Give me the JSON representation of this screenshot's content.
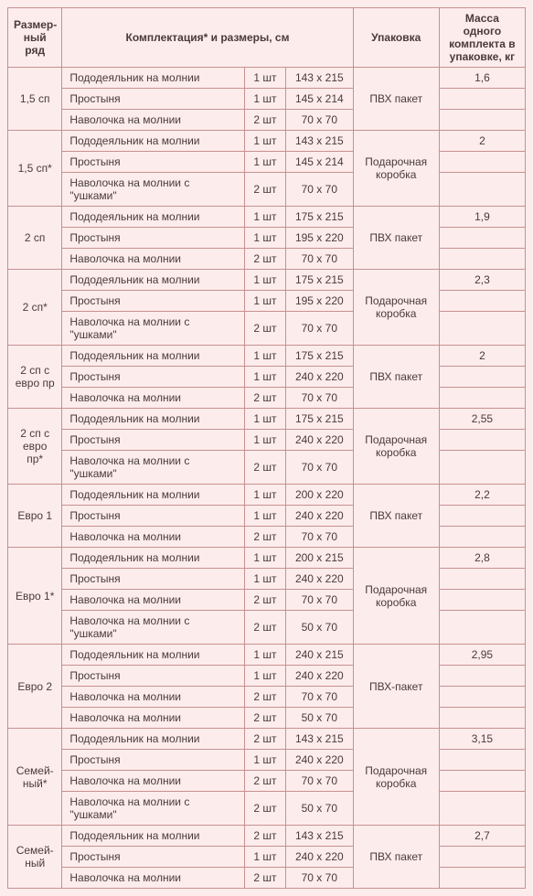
{
  "headers": {
    "size_range": "Размер-ный ряд",
    "config": "Комплектация* и размеры, см",
    "packaging": "Упаковка",
    "mass": "Масса одного комплекта в упаковке, кг"
  },
  "groups": [
    {
      "size": "1,5 сп",
      "packaging": "ПВХ пакет",
      "mass": "1,6",
      "rows": [
        {
          "item": "Пододеяльник на молнии",
          "qty": "1 шт",
          "dim": "143 x 215"
        },
        {
          "item": "Простыня",
          "qty": "1 шт",
          "dim": "145 x 214"
        },
        {
          "item": "Наволочка на молнии",
          "qty": "2 шт",
          "dim": "70 x 70"
        }
      ]
    },
    {
      "size": "1,5 сп*",
      "packaging": "Подарочная коробка",
      "mass": "2",
      "rows": [
        {
          "item": "Пододеяльник на молнии",
          "qty": "1 шт",
          "dim": "143 x 215"
        },
        {
          "item": "Простыня",
          "qty": "1 шт",
          "dim": "145 x 214"
        },
        {
          "item": "Наволочка на молнии с \"ушками\"",
          "qty": "2 шт",
          "dim": "70 x 70"
        }
      ]
    },
    {
      "size": "2 сп",
      "packaging": "ПВХ пакет",
      "mass": "1,9",
      "rows": [
        {
          "item": "Пододеяльник на молнии",
          "qty": "1 шт",
          "dim": "175 x 215"
        },
        {
          "item": "Простыня",
          "qty": "1 шт",
          "dim": "195 x 220"
        },
        {
          "item": "Наволочка на молнии",
          "qty": "2 шт",
          "dim": "70 x 70"
        }
      ]
    },
    {
      "size": "2 сп*",
      "packaging": "Подарочная коробка",
      "mass": "2,3",
      "rows": [
        {
          "item": "Пододеяльник на молнии",
          "qty": "1 шт",
          "dim": "175 x 215"
        },
        {
          "item": "Простыня",
          "qty": "1 шт",
          "dim": "195 x 220"
        },
        {
          "item": "Наволочка на молнии с \"ушками\"",
          "qty": "2 шт",
          "dim": "70 x 70"
        }
      ]
    },
    {
      "size": "2 сп с евро пр",
      "packaging": "ПВХ пакет",
      "mass": "2",
      "rows": [
        {
          "item": "Пододеяльник на молнии",
          "qty": "1 шт",
          "dim": "175 x 215"
        },
        {
          "item": "Простыня",
          "qty": "1 шт",
          "dim": "240 x 220"
        },
        {
          "item": "Наволочка на молнии",
          "qty": "2 шт",
          "dim": "70 x 70"
        }
      ]
    },
    {
      "size": "2 сп с евро пр*",
      "packaging": "Подарочная коробка",
      "mass": "2,55",
      "rows": [
        {
          "item": "Пододеяльник на молнии",
          "qty": "1 шт",
          "dim": "175 x 215"
        },
        {
          "item": "Простыня",
          "qty": "1 шт",
          "dim": "240 x 220"
        },
        {
          "item": "Наволочка на молнии с \"ушками\"",
          "qty": "2 шт",
          "dim": "70 x 70"
        }
      ]
    },
    {
      "size": "Евро 1",
      "packaging": "ПВХ пакет",
      "mass": "2,2",
      "rows": [
        {
          "item": "Пододеяльник на молнии",
          "qty": "1 шт",
          "dim": "200 x 220"
        },
        {
          "item": "Простыня",
          "qty": "1 шт",
          "dim": "240 x 220"
        },
        {
          "item": "Наволочка на молнии",
          "qty": "2 шт",
          "dim": "70 x 70"
        }
      ]
    },
    {
      "size": "Евро 1*",
      "packaging": "Подарочная коробка",
      "mass": "2,8",
      "rows": [
        {
          "item": "Пододеяльник на молнии",
          "qty": "1 шт",
          "dim": "200 x 215"
        },
        {
          "item": "Простыня",
          "qty": "1 шт",
          "dim": "240 x 220"
        },
        {
          "item": "Наволочка на молнии",
          "qty": "2 шт",
          "dim": "70 x 70"
        },
        {
          "item": "Наволочка на молнии с \"ушками\"",
          "qty": "2 шт",
          "dim": "50 x 70"
        }
      ]
    },
    {
      "size": "Евро 2",
      "packaging": "ПВХ-пакет",
      "mass": "2,95",
      "rows": [
        {
          "item": "Пододеяльник на молнии",
          "qty": "1 шт",
          "dim": "240 x 215"
        },
        {
          "item": "Простыня",
          "qty": "1 шт",
          "dim": "240 x 220"
        },
        {
          "item": "Наволочка на молнии",
          "qty": "2 шт",
          "dim": "70 x 70"
        },
        {
          "item": "Наволочка на молнии",
          "qty": "2 шт",
          "dim": "50 x 70"
        }
      ]
    },
    {
      "size": "Семей-ный*",
      "packaging": "Подарочная коробка",
      "mass": "3,15",
      "rows": [
        {
          "item": "Пододеяльник на молнии",
          "qty": "2 шт",
          "dim": "143 x 215"
        },
        {
          "item": "Простыня",
          "qty": "1 шт",
          "dim": "240 x 220"
        },
        {
          "item": "Наволочка на молнии",
          "qty": "2 шт",
          "dim": "70 x 70"
        },
        {
          "item": "Наволочка на молнии с \"ушками\"",
          "qty": "2 шт",
          "dim": "50 x 70"
        }
      ]
    },
    {
      "size": "Семей-ный",
      "packaging": "ПВХ пакет",
      "mass": "2,7",
      "rows": [
        {
          "item": "Пододеяльник на молнии",
          "qty": "2 шт",
          "dim": "143 x 215"
        },
        {
          "item": "Простыня",
          "qty": "1 шт",
          "dim": "240 x 220"
        },
        {
          "item": "Наволочка на молнии",
          "qty": "2 шт",
          "dim": "70 x 70"
        }
      ]
    }
  ]
}
